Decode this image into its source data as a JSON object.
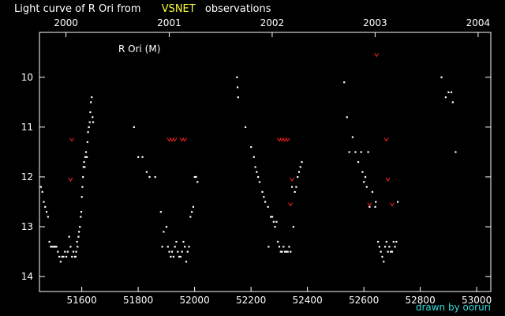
{
  "title": {
    "main": "Light curve of R Ori from",
    "source": "VSNET",
    "rest": "observations"
  },
  "credit": "drawn by ooruri",
  "colors": {
    "background": "#000000",
    "observation": "#ffffff",
    "upper_limit": "#ff2222",
    "source": "#ffff33",
    "credit": "#33dddd"
  },
  "chart_data": {
    "type": "scatter",
    "label": "R Ori (M)",
    "xlim": [
      51450,
      53050
    ],
    "ylim": [
      14.3,
      9.1
    ],
    "y_inverted": true,
    "x_ticks": [
      51600,
      51800,
      52000,
      52200,
      52400,
      52600,
      52800,
      53000
    ],
    "y_ticks": [
      10,
      11,
      12,
      13,
      14
    ],
    "year_ticks": [
      {
        "label": "2000",
        "jd": 51544
      },
      {
        "label": "2001",
        "jd": 51910
      },
      {
        "label": "2002",
        "jd": 52275
      },
      {
        "label": "2003",
        "jd": 52640
      },
      {
        "label": "2004",
        "jd": 53005
      }
    ],
    "series": [
      {
        "kind": "observation",
        "points": [
          [
            51455,
            12.2
          ],
          [
            51460,
            12.3
          ],
          [
            51465,
            12.5
          ],
          [
            51470,
            12.6
          ],
          [
            51475,
            12.7
          ],
          [
            51480,
            12.8
          ],
          [
            51485,
            13.3
          ],
          [
            51490,
            13.4
          ],
          [
            51495,
            13.4
          ],
          [
            51500,
            13.4
          ],
          [
            51505,
            13.4
          ],
          [
            51510,
            13.4
          ],
          [
            51515,
            13.5
          ],
          [
            51520,
            13.6
          ],
          [
            51525,
            13.7
          ],
          [
            51530,
            13.6
          ],
          [
            51535,
            13.6
          ],
          [
            51540,
            13.5
          ],
          [
            51545,
            13.6
          ],
          [
            51550,
            13.5
          ],
          [
            51555,
            13.2
          ],
          [
            51560,
            13.4
          ],
          [
            51565,
            13.6
          ],
          [
            51570,
            13.5
          ],
          [
            51575,
            13.6
          ],
          [
            51578,
            13.6
          ],
          [
            51580,
            13.5
          ],
          [
            51583,
            13.3
          ],
          [
            51585,
            13.4
          ],
          [
            51588,
            13.2
          ],
          [
            51590,
            13.1
          ],
          [
            51593,
            13.0
          ],
          [
            51596,
            12.8
          ],
          [
            51598,
            12.7
          ],
          [
            51600,
            12.4
          ],
          [
            51602,
            12.2
          ],
          [
            51604,
            12.0
          ],
          [
            51606,
            11.8
          ],
          [
            51608,
            11.7
          ],
          [
            51610,
            11.8
          ],
          [
            51612,
            11.6
          ],
          [
            51615,
            11.5
          ],
          [
            51618,
            11.6
          ],
          [
            51620,
            11.3
          ],
          [
            51622,
            11.1
          ],
          [
            51625,
            11.0
          ],
          [
            51628,
            10.9
          ],
          [
            51630,
            10.7
          ],
          [
            51632,
            10.5
          ],
          [
            51635,
            10.4
          ],
          [
            51638,
            10.8
          ],
          [
            51640,
            10.9
          ],
          [
            51785,
            11.0
          ],
          [
            51800,
            11.6
          ],
          [
            51815,
            11.6
          ],
          [
            51830,
            11.9
          ],
          [
            51840,
            12.0
          ],
          [
            51860,
            12.0
          ],
          [
            51880,
            12.7
          ],
          [
            51885,
            13.4
          ],
          [
            51890,
            13.1
          ],
          [
            51900,
            13.0
          ],
          [
            51905,
            13.4
          ],
          [
            51910,
            13.5
          ],
          [
            51915,
            13.6
          ],
          [
            51920,
            13.5
          ],
          [
            51925,
            13.6
          ],
          [
            51930,
            13.4
          ],
          [
            51935,
            13.3
          ],
          [
            51940,
            13.5
          ],
          [
            51945,
            13.6
          ],
          [
            51950,
            13.6
          ],
          [
            51955,
            13.5
          ],
          [
            51960,
            13.3
          ],
          [
            51965,
            13.4
          ],
          [
            51970,
            13.7
          ],
          [
            51975,
            13.5
          ],
          [
            51980,
            13.4
          ],
          [
            51985,
            12.8
          ],
          [
            51990,
            12.7
          ],
          [
            51995,
            12.6
          ],
          [
            52000,
            12.0
          ],
          [
            52005,
            12.0
          ],
          [
            52010,
            12.1
          ],
          [
            52150,
            10.0
          ],
          [
            52152,
            10.2
          ],
          [
            52154,
            10.4
          ],
          [
            52180,
            11.0
          ],
          [
            52200,
            11.4
          ],
          [
            52210,
            11.6
          ],
          [
            52215,
            11.8
          ],
          [
            52220,
            11.9
          ],
          [
            52225,
            12.0
          ],
          [
            52230,
            12.1
          ],
          [
            52240,
            12.3
          ],
          [
            52245,
            12.4
          ],
          [
            52250,
            12.5
          ],
          [
            52260,
            12.6
          ],
          [
            52262,
            13.4
          ],
          [
            52270,
            12.8
          ],
          [
            52275,
            12.8
          ],
          [
            52280,
            12.9
          ],
          [
            52285,
            13.0
          ],
          [
            52290,
            12.9
          ],
          [
            52295,
            13.3
          ],
          [
            52300,
            13.4
          ],
          [
            52305,
            13.5
          ],
          [
            52310,
            13.5
          ],
          [
            52315,
            13.4
          ],
          [
            52320,
            13.5
          ],
          [
            52325,
            13.5
          ],
          [
            52330,
            13.5
          ],
          [
            52335,
            13.4
          ],
          [
            52340,
            13.5
          ],
          [
            52345,
            12.2
          ],
          [
            52350,
            13.0
          ],
          [
            52355,
            12.3
          ],
          [
            52360,
            12.2
          ],
          [
            52365,
            12.0
          ],
          [
            52370,
            11.9
          ],
          [
            52375,
            11.8
          ],
          [
            52380,
            11.7
          ],
          [
            52530,
            10.1
          ],
          [
            52540,
            10.8
          ],
          [
            52548,
            11.5
          ],
          [
            52560,
            11.2
          ],
          [
            52570,
            11.5
          ],
          [
            52580,
            11.7
          ],
          [
            52590,
            11.5
          ],
          [
            52595,
            11.9
          ],
          [
            52600,
            12.1
          ],
          [
            52605,
            12.0
          ],
          [
            52610,
            12.2
          ],
          [
            52615,
            11.5
          ],
          [
            52620,
            12.6
          ],
          [
            52630,
            12.3
          ],
          [
            52640,
            12.6
          ],
          [
            52642,
            12.5
          ],
          [
            52650,
            13.3
          ],
          [
            52655,
            13.4
          ],
          [
            52660,
            13.5
          ],
          [
            52665,
            13.6
          ],
          [
            52670,
            13.7
          ],
          [
            52675,
            13.4
          ],
          [
            52680,
            13.3
          ],
          [
            52685,
            13.5
          ],
          [
            52690,
            13.4
          ],
          [
            52695,
            13.5
          ],
          [
            52700,
            13.5
          ],
          [
            52705,
            13.3
          ],
          [
            52710,
            13.4
          ],
          [
            52715,
            13.3
          ],
          [
            52720,
            12.5
          ],
          [
            52875,
            10.0
          ],
          [
            52890,
            10.4
          ],
          [
            52900,
            10.3
          ],
          [
            52910,
            10.3
          ],
          [
            52915,
            10.5
          ],
          [
            52925,
            11.5
          ]
        ]
      },
      {
        "kind": "upper_limit",
        "points": [
          [
            51560,
            12.05
          ],
          [
            51565,
            11.25
          ],
          [
            51910,
            11.25
          ],
          [
            51920,
            11.25
          ],
          [
            51930,
            11.25
          ],
          [
            51955,
            11.25
          ],
          [
            51965,
            11.25
          ],
          [
            52300,
            11.25
          ],
          [
            52310,
            11.25
          ],
          [
            52320,
            11.25
          ],
          [
            52330,
            11.25
          ],
          [
            52345,
            12.05
          ],
          [
            52340,
            12.55
          ],
          [
            52620,
            12.55
          ],
          [
            52645,
            9.55
          ],
          [
            52680,
            11.25
          ],
          [
            52685,
            12.05
          ],
          [
            52700,
            12.55
          ]
        ]
      }
    ]
  }
}
